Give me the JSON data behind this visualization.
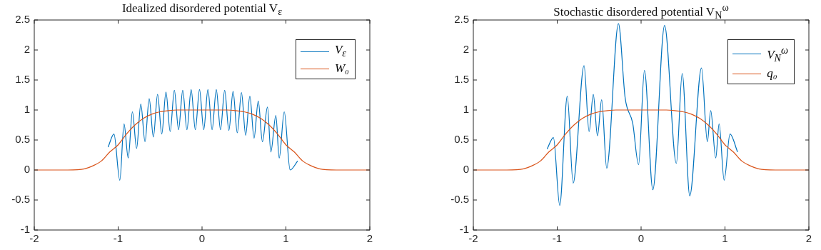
{
  "chart_data": [
    {
      "type": "line",
      "title": "Idealized disordered potential V$_{ε}$",
      "xlim": [
        -2,
        2
      ],
      "ylim": [
        -1,
        2.5
      ],
      "xticks": [
        -2,
        -1,
        0,
        1,
        2
      ],
      "yticks": [
        -1,
        -0.5,
        0,
        0.5,
        1,
        1.5,
        2,
        2.5
      ],
      "grid": false,
      "legend": "top right",
      "series": [
        {
          "name": "V$_{ε}$",
          "color": "#0072bd",
          "x": [
            -1.12,
            -1.05,
            -0.98,
            -0.93,
            -0.88,
            -0.83,
            -0.78,
            -0.73,
            -0.68,
            -0.63,
            -0.58,
            -0.53,
            -0.48,
            -0.43,
            -0.38,
            -0.33,
            -0.28,
            -0.23,
            -0.18,
            -0.13,
            -0.08,
            -0.03,
            0.02,
            0.07,
            0.12,
            0.17,
            0.22,
            0.27,
            0.32,
            0.37,
            0.42,
            0.47,
            0.52,
            0.57,
            0.62,
            0.67,
            0.72,
            0.78,
            0.82,
            0.88,
            0.92,
            0.98,
            1.05,
            1.14
          ],
          "values": [
            0.38,
            0.6,
            -0.17,
            0.77,
            0.2,
            0.97,
            0.36,
            1.1,
            0.47,
            1.19,
            0.55,
            1.26,
            0.6,
            1.3,
            0.64,
            1.33,
            0.67,
            1.33,
            0.67,
            1.34,
            0.67,
            1.34,
            0.67,
            1.34,
            0.67,
            1.34,
            0.67,
            1.33,
            0.66,
            1.31,
            0.62,
            1.29,
            0.58,
            1.23,
            0.53,
            1.15,
            0.47,
            1.05,
            0.3,
            0.91,
            0.2,
            0.97,
            0,
            0.15
          ]
        },
        {
          "name": "W₀",
          "color": "#d95319",
          "x": [
            -2,
            -1.6,
            -1.4,
            -1.3,
            -1.2,
            -1.1,
            -1,
            -0.9,
            -0.8,
            -0.7,
            -0.6,
            -0.5,
            -0.4,
            -0.3,
            0,
            0.3,
            0.4,
            0.5,
            0.6,
            0.7,
            0.8,
            0.9,
            1,
            1.1,
            1.2,
            1.3,
            1.4,
            1.6,
            2
          ],
          "values": [
            0,
            0,
            0.02,
            0.07,
            0.15,
            0.3,
            0.42,
            0.6,
            0.75,
            0.86,
            0.93,
            0.97,
            0.99,
            1,
            1,
            1,
            0.99,
            0.97,
            0.93,
            0.86,
            0.75,
            0.6,
            0.42,
            0.3,
            0.15,
            0.07,
            0.02,
            0,
            0
          ]
        }
      ]
    },
    {
      "type": "line",
      "title": "Stochastic disordered potential V$_{N}$$^{ω}$",
      "xlim": [
        -2,
        2
      ],
      "ylim": [
        -1,
        2.5
      ],
      "xticks": [
        -2,
        -1,
        0,
        1,
        2
      ],
      "yticks": [
        -1,
        -0.5,
        0,
        0.5,
        1,
        1.5,
        2,
        2.5
      ],
      "grid": false,
      "legend": "top right",
      "series": [
        {
          "name": "V$_{N}$$^{ω}$",
          "color": "#0072bd",
          "x": [
            -1.12,
            -1.045,
            -0.97,
            -0.88,
            -0.81,
            -0.68,
            -0.62,
            -0.57,
            -0.52,
            -0.47,
            -0.41,
            -0.27,
            -0.19,
            -0.1,
            -0.03,
            0.04,
            0.14,
            0.28,
            0.42,
            0.49,
            0.58,
            0.72,
            0.79,
            0.83,
            0.89,
            0.93,
            0.99,
            1.06,
            1.15
          ],
          "values": [
            0.35,
            0.54,
            -0.59,
            1.23,
            -0.22,
            1.74,
            0.64,
            1.26,
            0.57,
            1.17,
            0.03,
            2.44,
            1.2,
            0.78,
            0.09,
            1.66,
            -0.33,
            2.41,
            0.11,
            1.61,
            -0.43,
            1.7,
            0.47,
            0.99,
            0.2,
            0.77,
            -0.17,
            0.6,
            0.3
          ]
        },
        {
          "name": "q₀",
          "color": "#d95319",
          "x": [
            -2,
            -1.6,
            -1.4,
            -1.3,
            -1.2,
            -1.1,
            -1,
            -0.9,
            -0.8,
            -0.7,
            -0.6,
            -0.5,
            -0.4,
            -0.3,
            0,
            0.3,
            0.4,
            0.5,
            0.6,
            0.7,
            0.8,
            0.9,
            1,
            1.1,
            1.2,
            1.3,
            1.4,
            1.6,
            2
          ],
          "values": [
            0,
            0,
            0.02,
            0.07,
            0.15,
            0.3,
            0.42,
            0.6,
            0.75,
            0.86,
            0.93,
            0.97,
            0.99,
            1,
            1,
            1,
            0.99,
            0.97,
            0.93,
            0.86,
            0.75,
            0.6,
            0.42,
            0.3,
            0.15,
            0.07,
            0.02,
            0,
            0
          ]
        }
      ]
    }
  ]
}
